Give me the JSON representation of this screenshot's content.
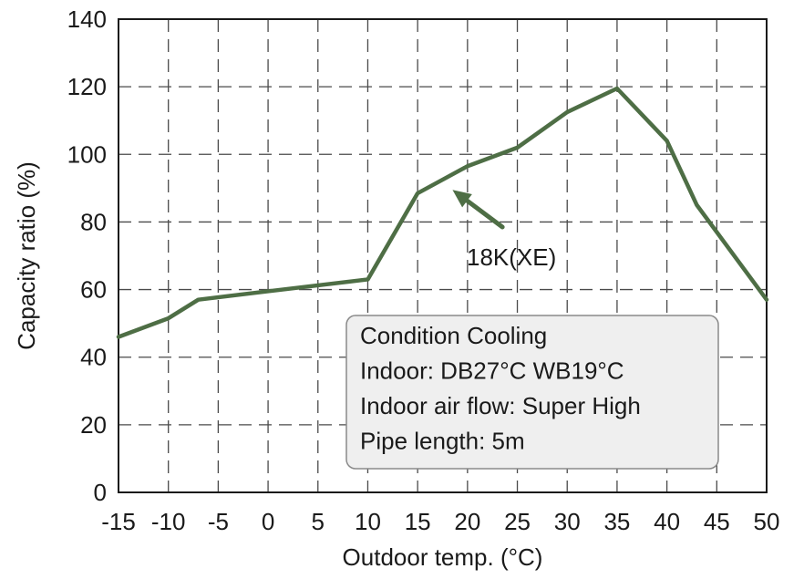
{
  "chart_data": {
    "type": "line",
    "title": "",
    "xlabel": "Outdoor temp. (°C)",
    "ylabel": "Capacity ratio (%)",
    "xlim": [
      -15,
      50
    ],
    "ylim": [
      0,
      140
    ],
    "x_ticks": [
      -15,
      -10,
      -5,
      0,
      5,
      10,
      15,
      20,
      25,
      30,
      35,
      40,
      45,
      50
    ],
    "y_ticks": [
      0,
      20,
      40,
      60,
      80,
      100,
      120,
      140
    ],
    "grid": true,
    "series": [
      {
        "name": "18K(XE)",
        "color": "#4e6e45",
        "x": [
          -15,
          -10,
          -7,
          0,
          10,
          15,
          20,
          25,
          30,
          35,
          40,
          43,
          50
        ],
        "y": [
          46,
          51.5,
          57,
          59.5,
          63,
          88.5,
          96.5,
          102,
          112.5,
          119.5,
          104,
          85,
          57
        ]
      }
    ],
    "annotation": {
      "label": "18K(XE)",
      "arrow_from": [
        23.5,
        78.5
      ],
      "arrow_to": [
        18.5,
        89.5
      ]
    },
    "condition_box": {
      "lines": [
        "Condition Cooling",
        "Indoor: DB27°C WB19°C",
        "Indoor air flow: Super High",
        "Pipe length: 5m"
      ]
    }
  }
}
